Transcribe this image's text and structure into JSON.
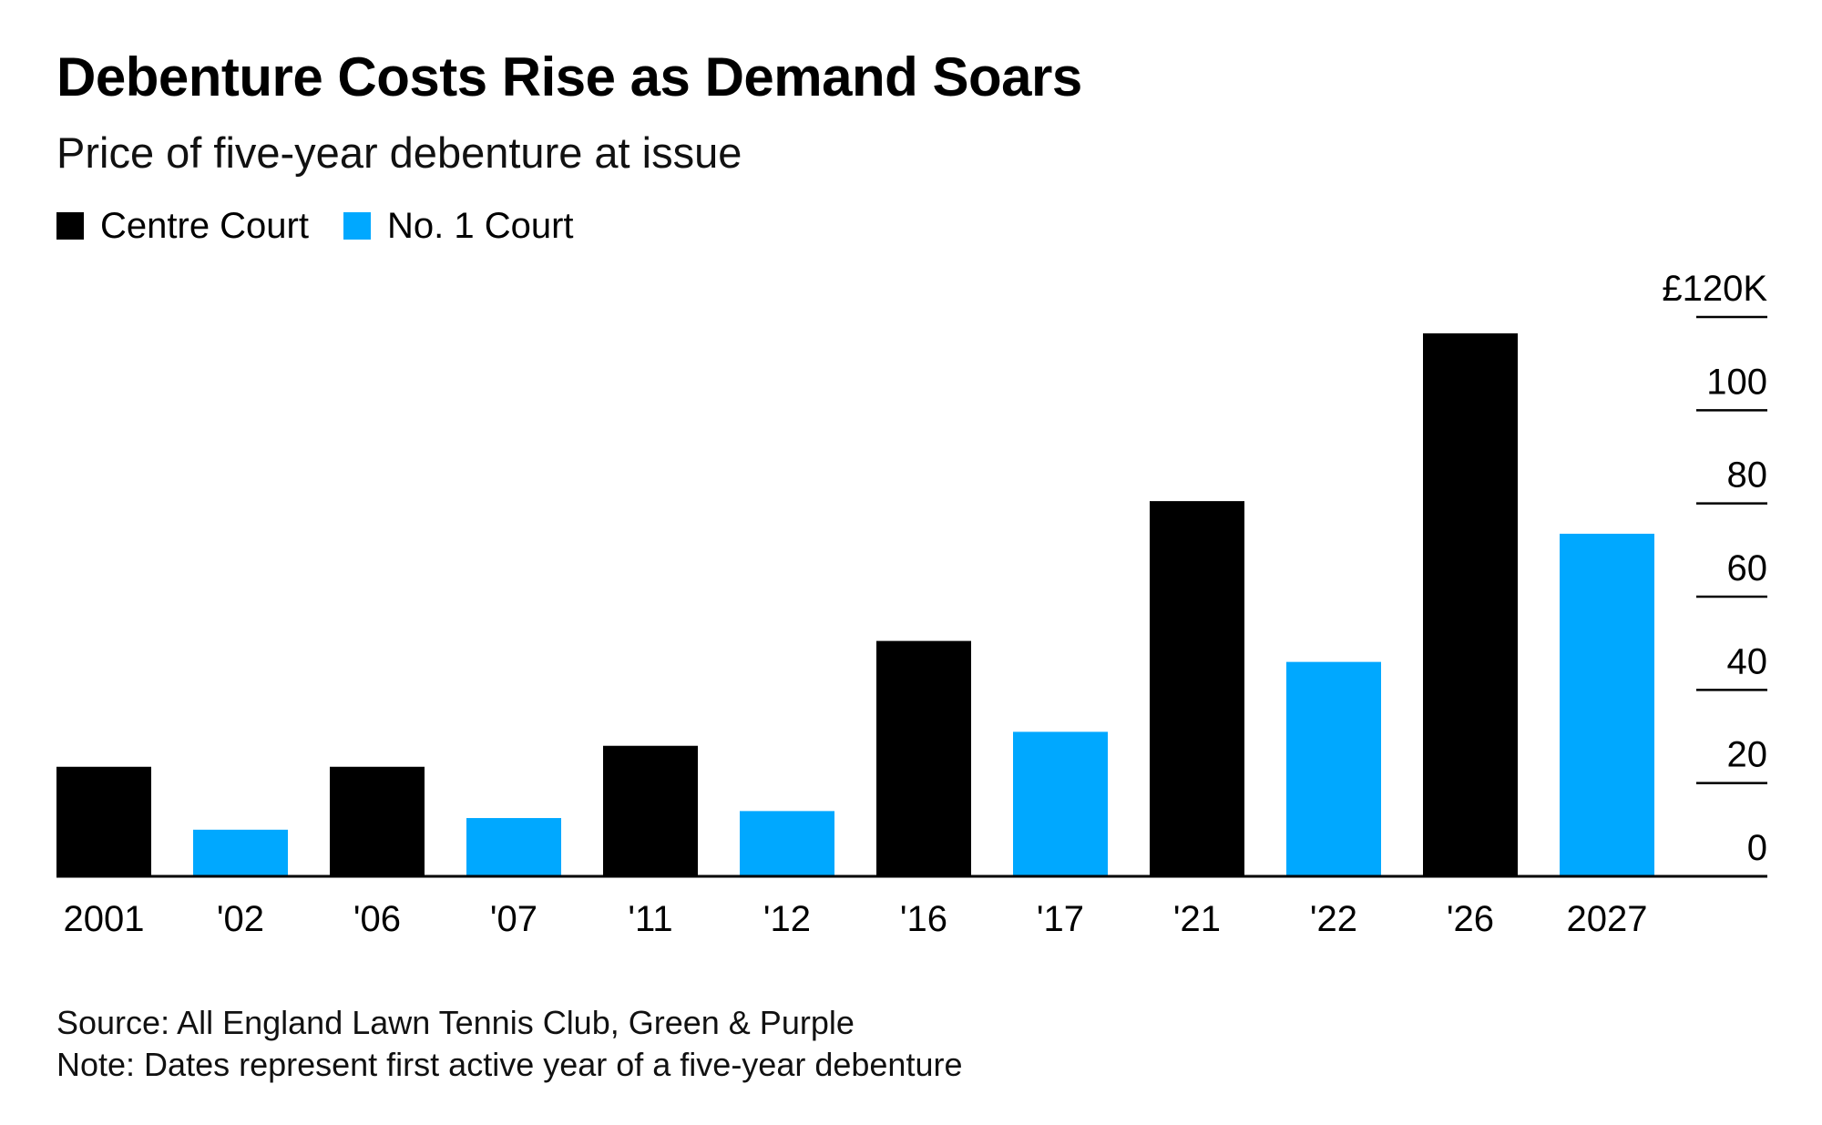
{
  "chart_data": {
    "type": "bar",
    "title": "Debenture Costs Rise as Demand Soars",
    "subtitle": "Price of five-year debenture at issue",
    "categories": [
      "2001",
      "'02",
      "'06",
      "'07",
      "'11",
      "'12",
      "'16",
      "'17",
      "'21",
      "'22",
      "'26",
      "2027"
    ],
    "values": [
      23.5,
      10,
      23.5,
      12.5,
      28,
      14,
      50.5,
      31,
      80.5,
      46,
      116.5,
      73.5
    ],
    "bar_series": [
      "Centre Court",
      "No. 1 Court",
      "Centre Court",
      "No. 1 Court",
      "Centre Court",
      "No. 1 Court",
      "Centre Court",
      "No. 1 Court",
      "Centre Court",
      "No. 1 Court",
      "Centre Court",
      "No. 1 Court"
    ],
    "series": [
      {
        "name": "Centre Court",
        "color": "#000000"
      },
      {
        "name": "No. 1 Court",
        "color": "#00a8ff"
      }
    ],
    "ylim": [
      0,
      120
    ],
    "yticks": [
      0,
      20,
      40,
      60,
      80,
      100,
      120
    ],
    "ytick_labels": [
      "0",
      "20",
      "40",
      "60",
      "80",
      "100",
      "£120K"
    ],
    "y_axis_position": "right",
    "legend_position": "top-left",
    "grid": false,
    "xlabel": "",
    "ylabel": ""
  },
  "footer": {
    "source": "Source: All England Lawn Tennis Club, Green & Purple",
    "note": "Note: Dates represent first active year of a five-year debenture"
  }
}
